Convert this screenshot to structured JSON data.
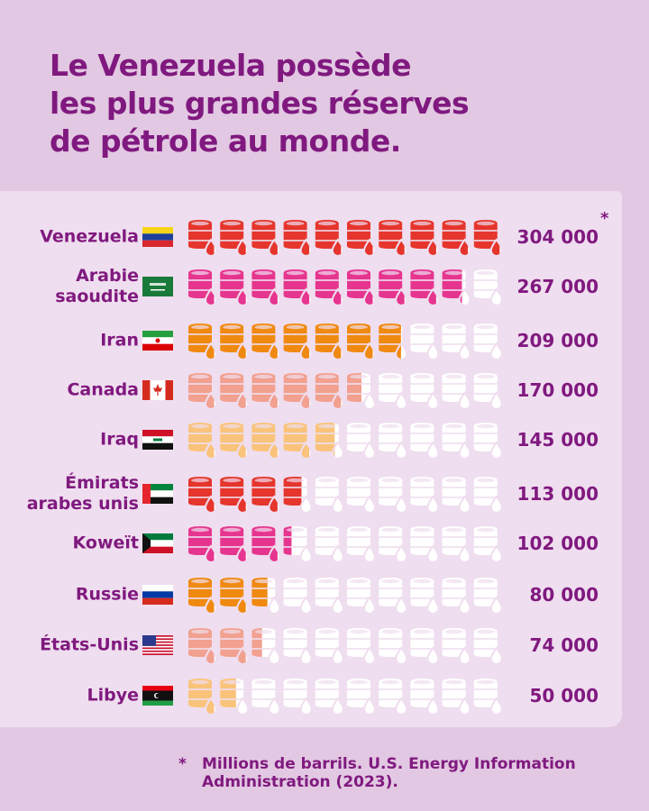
{
  "title_lines": [
    "Le Venezuela possède",
    "les plus grandes réserves",
    "de pétrole au monde."
  ],
  "footnote": {
    "marker": "*",
    "lines": [
      "Millions de barrils. U.S. Energy Information",
      "Administration (2023)."
    ]
  },
  "chart_data": {
    "type": "pictogram",
    "unit": "Millions de barrils",
    "icon": "oil-barrel-icon",
    "icons_max": 10,
    "max_value": 304000,
    "empty_color": "#ffffff",
    "rows": [
      {
        "country": "Venezuela",
        "label_lines": [
          "Venezuela"
        ],
        "value": 304000,
        "display": "304 000",
        "marker": "*",
        "color": "#e5352c",
        "flag": "venezuela"
      },
      {
        "country": "Arabie saoudite",
        "label_lines": [
          "Arabie",
          "saoudite"
        ],
        "value": 267000,
        "display": "267 000",
        "color": "#e6358f",
        "flag": "saudi-arabia"
      },
      {
        "country": "Iran",
        "label_lines": [
          "Iran"
        ],
        "value": 209000,
        "display": "209 000",
        "color": "#f08910",
        "flag": "iran"
      },
      {
        "country": "Canada",
        "label_lines": [
          "Canada"
        ],
        "value": 170000,
        "display": "170 000",
        "color": "#f2a08f",
        "flag": "canada"
      },
      {
        "country": "Iraq",
        "label_lines": [
          "Iraq"
        ],
        "value": 145000,
        "display": "145 000",
        "color": "#f9c37b",
        "flag": "iraq"
      },
      {
        "country": "Émirats arabes unis",
        "label_lines": [
          "Émirats",
          "arabes unis"
        ],
        "value": 113000,
        "display": "113 000",
        "color": "#e5352c",
        "flag": "uae"
      },
      {
        "country": "Koweït",
        "label_lines": [
          "Koweït"
        ],
        "value": 102000,
        "display": "102 000",
        "color": "#e6358f",
        "flag": "kuwait"
      },
      {
        "country": "Russie",
        "label_lines": [
          "Russie"
        ],
        "value": 80000,
        "display": "80 000",
        "color": "#f08910",
        "flag": "russia"
      },
      {
        "country": "États-Unis",
        "label_lines": [
          "États-Unis"
        ],
        "value": 74000,
        "display": "74 000",
        "color": "#f2a08f",
        "flag": "usa"
      },
      {
        "country": "Libye",
        "label_lines": [
          "Libye"
        ],
        "value": 50000,
        "display": "50 000",
        "color": "#f9c37b",
        "flag": "libya"
      }
    ]
  }
}
